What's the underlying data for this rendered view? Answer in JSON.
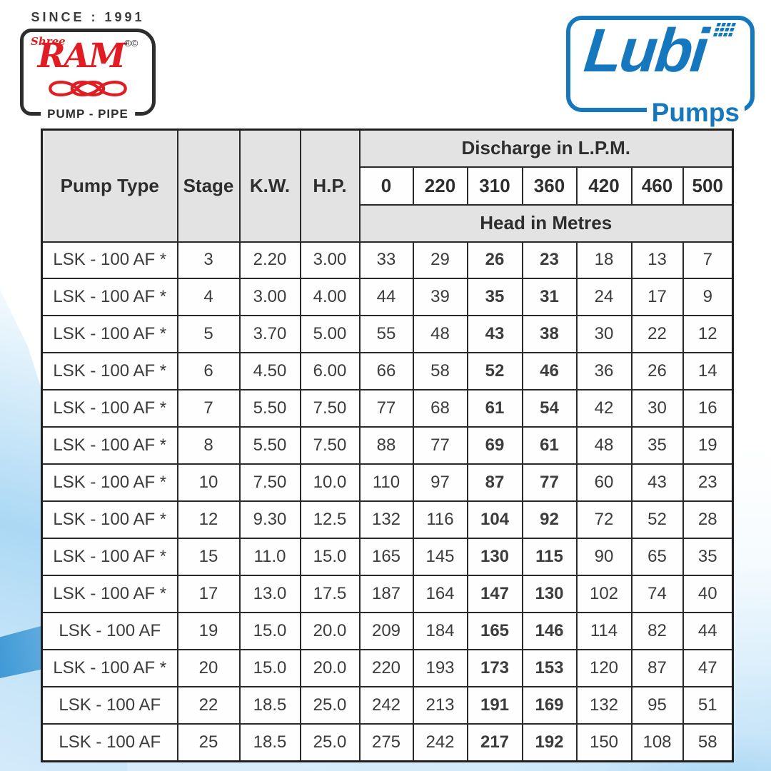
{
  "branding": {
    "shree_ram": {
      "since_text": "SINCE : 1991",
      "shree": "Shree",
      "name": "RAM",
      "marks": "®©",
      "tagline": "PUMP - PIPE",
      "red": "#e11d23",
      "dark": "#2d2d2d"
    },
    "lubi": {
      "name": "Lubi",
      "sub": "Pumps",
      "blue": "#1578be"
    }
  },
  "table": {
    "col_headers": [
      "Pump Type",
      "Stage",
      "K.W.",
      "H.P."
    ],
    "discharge_header": "Discharge in L.P.M.",
    "discharge_values": [
      "0",
      "220",
      "310",
      "360",
      "420",
      "460",
      "500"
    ],
    "head_header": "Head in Metres",
    "bold_discharge_columns": [
      "310",
      "360"
    ],
    "rows": [
      {
        "pump_type": "LSK - 100 AF *",
        "stage": "3",
        "kw": "2.20",
        "hp": "3.00",
        "heads": [
          "33",
          "29",
          "26",
          "23",
          "18",
          "13",
          "7"
        ]
      },
      {
        "pump_type": "LSK - 100 AF *",
        "stage": "4",
        "kw": "3.00",
        "hp": "4.00",
        "heads": [
          "44",
          "39",
          "35",
          "31",
          "24",
          "17",
          "9"
        ]
      },
      {
        "pump_type": "LSK - 100 AF *",
        "stage": "5",
        "kw": "3.70",
        "hp": "5.00",
        "heads": [
          "55",
          "48",
          "43",
          "38",
          "30",
          "22",
          "12"
        ]
      },
      {
        "pump_type": "LSK - 100 AF *",
        "stage": "6",
        "kw": "4.50",
        "hp": "6.00",
        "heads": [
          "66",
          "58",
          "52",
          "46",
          "36",
          "26",
          "14"
        ]
      },
      {
        "pump_type": "LSK - 100 AF *",
        "stage": "7",
        "kw": "5.50",
        "hp": "7.50",
        "heads": [
          "77",
          "68",
          "61",
          "54",
          "42",
          "30",
          "16"
        ]
      },
      {
        "pump_type": "LSK - 100 AF *",
        "stage": "8",
        "kw": "5.50",
        "hp": "7.50",
        "heads": [
          "88",
          "77",
          "69",
          "61",
          "48",
          "35",
          "19"
        ]
      },
      {
        "pump_type": "LSK - 100 AF *",
        "stage": "10",
        "kw": "7.50",
        "hp": "10.0",
        "heads": [
          "110",
          "97",
          "87",
          "77",
          "60",
          "43",
          "23"
        ]
      },
      {
        "pump_type": "LSK - 100 AF *",
        "stage": "12",
        "kw": "9.30",
        "hp": "12.5",
        "heads": [
          "132",
          "116",
          "104",
          "92",
          "72",
          "52",
          "28"
        ]
      },
      {
        "pump_type": "LSK - 100 AF *",
        "stage": "15",
        "kw": "11.0",
        "hp": "15.0",
        "heads": [
          "165",
          "145",
          "130",
          "115",
          "90",
          "65",
          "35"
        ]
      },
      {
        "pump_type": "LSK - 100 AF *",
        "stage": "17",
        "kw": "13.0",
        "hp": "17.5",
        "heads": [
          "187",
          "164",
          "147",
          "130",
          "102",
          "74",
          "40"
        ]
      },
      {
        "pump_type": "LSK - 100 AF",
        "stage": "19",
        "kw": "15.0",
        "hp": "20.0",
        "heads": [
          "209",
          "184",
          "165",
          "146",
          "114",
          "82",
          "44"
        ]
      },
      {
        "pump_type": "LSK - 100 AF *",
        "stage": "20",
        "kw": "15.0",
        "hp": "20.0",
        "heads": [
          "220",
          "193",
          "173",
          "153",
          "120",
          "87",
          "47"
        ]
      },
      {
        "pump_type": "LSK - 100 AF",
        "stage": "22",
        "kw": "18.5",
        "hp": "25.0",
        "heads": [
          "242",
          "213",
          "191",
          "169",
          "132",
          "95",
          "51"
        ]
      },
      {
        "pump_type": "LSK - 100 AF",
        "stage": "25",
        "kw": "18.5",
        "hp": "25.0",
        "heads": [
          "275",
          "242",
          "217",
          "192",
          "150",
          "108",
          "58"
        ]
      }
    ]
  }
}
